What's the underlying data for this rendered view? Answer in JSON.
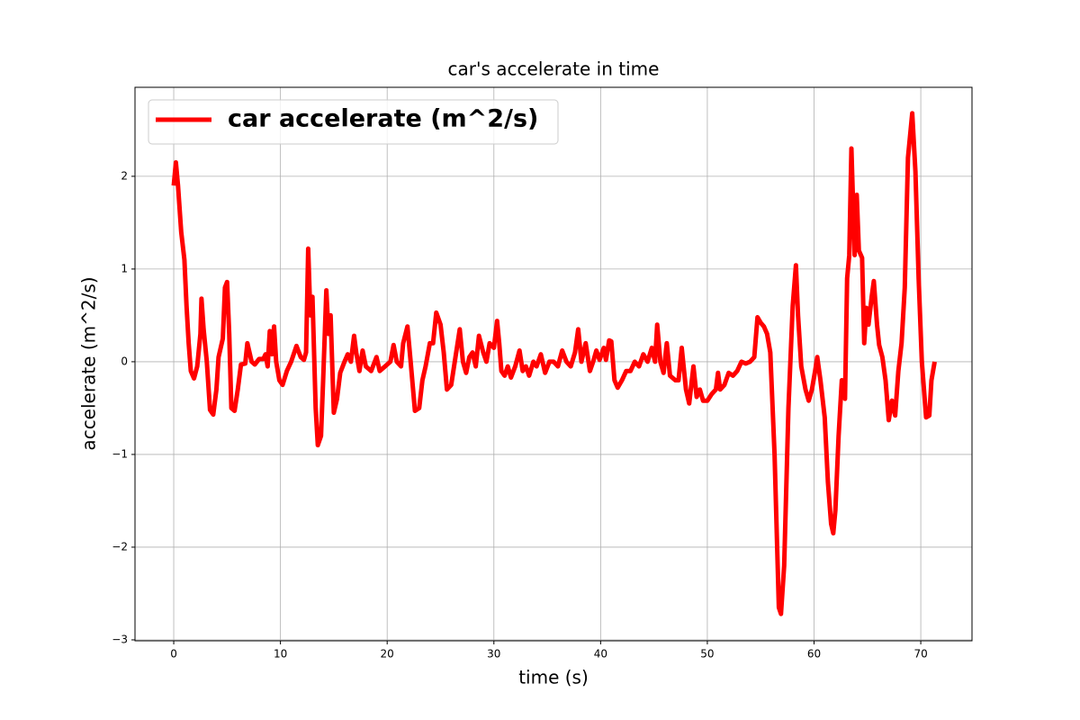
{
  "chart_data": {
    "type": "line",
    "title": "car's accelerate in time",
    "x_label": "time (s)",
    "y_label": "accelerate (m^2/s)",
    "xlim": [
      -3.63,
      74.8
    ],
    "ylim": [
      -3.01,
      2.96
    ],
    "xticks": [
      0,
      10,
      20,
      30,
      40,
      50,
      60,
      70
    ],
    "yticks": [
      {
        "value": -3,
        "label": "−3"
      },
      {
        "value": -2,
        "label": "−2"
      },
      {
        "value": -1,
        "label": "−1"
      },
      0,
      1,
      2
    ],
    "grid": true,
    "legend_position": "upper left",
    "series": [
      {
        "name": "car accelerate (m^2/s)",
        "color": "#ff0000",
        "x": [
          0,
          0.2,
          0.4,
          0.7,
          1.0,
          1.2,
          1.4,
          1.6,
          1.9,
          2.2,
          2.5,
          2.6,
          2.8,
          3.1,
          3.4,
          3.7,
          4.0,
          4.2,
          4.6,
          4.8,
          5.0,
          5.2,
          5.4,
          5.7,
          6.0,
          6.3,
          6.7,
          6.9,
          7.3,
          7.6,
          8.0,
          8.4,
          8.6,
          8.8,
          9.0,
          9.2,
          9.4,
          9.6,
          9.9,
          10.2,
          10.6,
          11.0,
          11.5,
          11.9,
          12.2,
          12.4,
          12.6,
          12.8,
          13.0,
          13.3,
          13.5,
          13.8,
          14.0,
          14.3,
          14.5,
          14.7,
          15.0,
          15.3,
          15.6,
          16.0,
          16.3,
          16.6,
          16.9,
          17.1,
          17.4,
          17.7,
          18.0,
          18.5,
          19.0,
          19.3,
          19.8,
          20.3,
          20.6,
          20.9,
          21.3,
          21.5,
          21.9,
          22.2,
          22.6,
          23.0,
          23.3,
          23.6,
          24.0,
          24.3,
          24.6,
          25.0,
          25.3,
          25.6,
          26.0,
          26.4,
          26.8,
          27.1,
          27.4,
          27.7,
          28.0,
          28.3,
          28.6,
          29.0,
          29.3,
          29.6,
          30.0,
          30.3,
          30.5,
          30.7,
          31.0,
          31.3,
          31.6,
          32.0,
          32.4,
          32.7,
          33.0,
          33.3,
          33.7,
          34.0,
          34.4,
          34.8,
          35.2,
          35.6,
          36.0,
          36.4,
          36.8,
          37.2,
          37.6,
          37.9,
          38.2,
          38.6,
          39.0,
          39.3,
          39.6,
          39.9,
          40.3,
          40.5,
          40.8,
          41.0,
          41.3,
          41.6,
          42.0,
          42.4,
          42.8,
          43.2,
          43.6,
          44.0,
          44.4,
          44.8,
          45.1,
          45.3,
          45.6,
          45.9,
          46.2,
          46.5,
          47.0,
          47.3,
          47.6,
          48.0,
          48.3,
          48.7,
          49.0,
          49.3,
          49.6,
          50.0,
          50.4,
          50.8,
          51.0,
          51.2,
          51.6,
          52.0,
          52.4,
          52.8,
          53.2,
          53.6,
          54.0,
          54.4,
          54.7,
          55.0,
          55.3,
          55.6,
          55.9,
          56.3,
          56.7,
          56.9,
          57.2,
          57.6,
          58.0,
          58.3,
          58.5,
          58.8,
          59.2,
          59.5,
          59.8,
          60.1,
          60.3,
          60.6,
          61.0,
          61.3,
          61.6,
          61.8,
          62.0,
          62.3,
          62.6,
          62.9,
          63.1,
          63.3,
          63.5,
          63.8,
          64.0,
          64.2,
          64.5,
          64.7,
          64.9,
          65.1,
          65.4,
          65.6,
          65.9,
          66.1,
          66.4,
          66.7,
          67.0,
          67.3,
          67.6,
          67.9,
          68.2,
          68.5,
          68.8,
          69.2,
          69.5,
          69.8,
          70.1,
          70.5,
          70.8,
          71.0,
          71.3
        ],
        "values": [
          1.9,
          2.15,
          1.9,
          1.4,
          1.1,
          0.6,
          0.2,
          -0.1,
          -0.18,
          -0.05,
          0.3,
          0.68,
          0.35,
          0.0,
          -0.52,
          -0.57,
          -0.3,
          0.05,
          0.25,
          0.8,
          0.86,
          0.3,
          -0.5,
          -0.53,
          -0.3,
          -0.03,
          -0.02,
          0.2,
          0.0,
          -0.03,
          0.03,
          0.03,
          0.08,
          -0.05,
          0.33,
          0.08,
          0.38,
          0.0,
          -0.2,
          -0.25,
          -0.1,
          0.0,
          0.17,
          0.05,
          0.02,
          0.1,
          1.22,
          0.5,
          0.7,
          -0.5,
          -0.9,
          -0.8,
          -0.2,
          0.77,
          0.3,
          0.5,
          -0.55,
          -0.4,
          -0.12,
          0.0,
          0.08,
          0.0,
          0.28,
          0.1,
          -0.1,
          0.12,
          -0.05,
          -0.1,
          0.05,
          -0.1,
          -0.05,
          0.0,
          0.18,
          0.0,
          -0.05,
          0.2,
          0.38,
          0.0,
          -0.53,
          -0.5,
          -0.2,
          -0.05,
          0.2,
          0.2,
          0.53,
          0.4,
          0.1,
          -0.3,
          -0.25,
          0.05,
          0.35,
          0.0,
          -0.12,
          0.05,
          0.1,
          -0.05,
          0.28,
          0.1,
          0.0,
          0.2,
          0.15,
          0.44,
          0.2,
          -0.1,
          -0.15,
          -0.05,
          -0.17,
          -0.05,
          0.12,
          -0.1,
          -0.05,
          -0.15,
          0.0,
          -0.05,
          0.08,
          -0.12,
          0.0,
          0.0,
          -0.05,
          0.12,
          0.0,
          -0.05,
          0.1,
          0.35,
          0.0,
          0.2,
          -0.1,
          0.0,
          0.12,
          0.02,
          0.15,
          0.02,
          0.23,
          0.22,
          -0.2,
          -0.28,
          -0.2,
          -0.1,
          -0.1,
          0.0,
          -0.05,
          0.08,
          0.0,
          0.15,
          0.0,
          0.4,
          0.0,
          -0.12,
          0.2,
          -0.15,
          -0.2,
          -0.2,
          0.15,
          -0.3,
          -0.45,
          -0.05,
          -0.38,
          -0.3,
          -0.42,
          -0.42,
          -0.35,
          -0.3,
          -0.12,
          -0.3,
          -0.25,
          -0.12,
          -0.15,
          -0.1,
          0.0,
          -0.02,
          0.0,
          0.05,
          0.48,
          0.42,
          0.38,
          0.3,
          0.1,
          -1.0,
          -2.65,
          -2.72,
          -2.2,
          -0.5,
          0.6,
          1.04,
          0.5,
          -0.05,
          -0.3,
          -0.42,
          -0.3,
          -0.1,
          0.05,
          -0.2,
          -0.6,
          -1.3,
          -1.75,
          -1.85,
          -1.6,
          -0.8,
          -0.2,
          -0.4,
          0.9,
          1.15,
          2.3,
          1.15,
          1.8,
          1.2,
          1.12,
          0.2,
          0.58,
          0.4,
          0.7,
          0.87,
          0.4,
          0.18,
          0.05,
          -0.2,
          -0.63,
          -0.42,
          -0.58,
          -0.1,
          0.2,
          0.8,
          2.2,
          2.68,
          2.05,
          0.9,
          0.0,
          -0.6,
          -0.58,
          -0.2,
          0.0
        ]
      }
    ]
  }
}
